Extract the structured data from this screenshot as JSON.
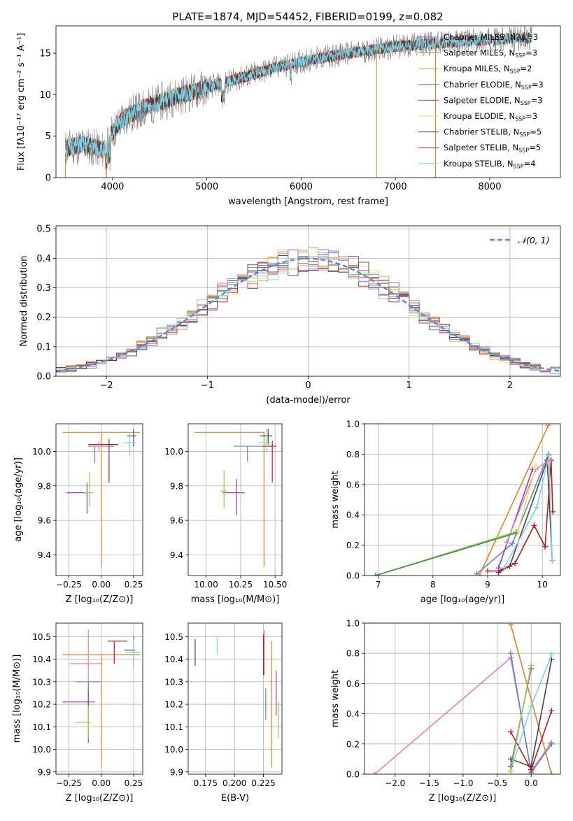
{
  "figure": {
    "title": "PLATE=1874, MJD=54452, FIBERID=0199, z=0.082"
  },
  "colors": {
    "Chabrier MILES": "#5a87cf",
    "Salpeter MILES": "#ea7f23",
    "Kroupa MILES": "#d5a232",
    "Chabrier ELODIE": "#3d8c4f",
    "Salpeter ELODIE": "#8f3fbf",
    "Kroupa ELODIE": "#e3e05a",
    "Chabrier STELIB": "#444444",
    "Salpeter STELIB": "#b21c1c",
    "Kroupa STELIB": "#7fd3df",
    "data": "#7f7f7f",
    "gaussian": "#5a87cf",
    "pink": "#e87fb4",
    "lime": "#8fd43a"
  },
  "chart_data": [
    {
      "id": "spectrum",
      "type": "line",
      "title": "PLATE=1874, MJD=54452, FIBERID=0199, z=0.082",
      "xlabel": "wavelength [Angstrom, rest frame]",
      "ylabel": "Flux [fλ10⁻¹⁷ erg cm⁻² s⁻¹ A⁻¹]",
      "xlim": [
        3400,
        8750
      ],
      "ylim": [
        0,
        18.3
      ],
      "xticks": [
        4000,
        5000,
        6000,
        7000,
        8000
      ],
      "yticks": [
        0,
        5,
        10,
        15
      ],
      "grid": false,
      "legend_position": "right",
      "series": [
        {
          "name": "Chabrier MILES, N_SSP=3",
          "label_main": "Chabrier MILES, N",
          "label_sub": "SSP",
          "label_tail": "=3"
        },
        {
          "name": "Salpeter MILES, N_SSP=3",
          "label_main": "Salpeter MILES, N",
          "label_sub": "SSP",
          "label_tail": "=3"
        },
        {
          "name": "Kroupa MILES, N_SSP=2",
          "label_main": "Kroupa MILES, N",
          "label_sub": "SSP",
          "label_tail": "=2"
        },
        {
          "name": "Chabrier ELODIE, N_SSP=3",
          "label_main": "Chabrier ELODIE, N",
          "label_sub": "SSP",
          "label_tail": "=3"
        },
        {
          "name": "Salpeter ELODIE, N_SSP=3",
          "label_main": "Salpeter ELODIE, N",
          "label_sub": "SSP",
          "label_tail": "=3"
        },
        {
          "name": "Kroupa ELODIE, N_SSP=3",
          "label_main": "Kroupa ELODIE, N",
          "label_sub": "SSP",
          "label_tail": "=3"
        },
        {
          "name": "Chabrier STELIB, N_SSP=5",
          "label_main": "Chabrier STELIB, N",
          "label_sub": "SSP",
          "label_tail": "=5"
        },
        {
          "name": "Salpeter STELIB, N_SSP=5",
          "label_main": "Salpeter STELIB, N",
          "label_sub": "SSP",
          "label_tail": "=5"
        },
        {
          "name": "Kroupa STELIB, N_SSP=4",
          "label_main": "Kroupa STELIB, N",
          "label_sub": "SSP",
          "label_tail": "=4"
        }
      ],
      "continuum": {
        "x": [
          3500,
          3700,
          3900,
          4000,
          4100,
          4300,
          4600,
          4900,
          5200,
          5500,
          5800,
          6100,
          6400,
          6700,
          7000,
          7400,
          7800,
          8300,
          8700
        ],
        "y": [
          3.5,
          4.0,
          3.3,
          5.5,
          7.0,
          8.3,
          9.5,
          10.5,
          11.5,
          12.5,
          13.5,
          14.2,
          14.8,
          15.3,
          15.8,
          16.2,
          16.5,
          16.8,
          17.0
        ]
      }
    },
    {
      "id": "residuals",
      "type": "line",
      "xlabel": "(data-model)/error",
      "ylabel": "Normed distribution",
      "xlim": [
        -2.5,
        2.5
      ],
      "ylim": [
        0,
        0.51
      ],
      "xticks": [
        -2,
        -1,
        0,
        1,
        2
      ],
      "yticks": [
        0.0,
        0.1,
        0.2,
        0.3,
        0.4,
        0.5
      ],
      "grid": true,
      "legend_position": "top-right",
      "legend_label": "𝒩(0, 1)",
      "bin_width": 0.1
    },
    {
      "id": "age-vs-z",
      "type": "scatter",
      "xlabel": "Z [log₁₀(Z/Z⊙)]",
      "ylabel": "age  [log₁₀(age/yr)]",
      "xlim": [
        -0.35,
        0.32
      ],
      "ylim": [
        9.28,
        10.16
      ],
      "xticks": [
        -0.25,
        0.0,
        0.25
      ],
      "xticklabels": [
        "−0.25",
        "0.00",
        "0.25"
      ],
      "yticks": [
        9.4,
        9.6,
        9.8,
        10.0
      ],
      "grid": true,
      "points": [
        {
          "series": "Salpeter MILES",
          "x": 0.0,
          "xerr": [
            0.3,
            0.3
          ],
          "y": 10.11,
          "yerr": [
            0.78,
            0.0
          ]
        },
        {
          "series": "Chabrier MILES",
          "x": -0.05,
          "xerr": [
            0.05,
            0.15
          ],
          "y": 10.03,
          "yerr": [
            0.1,
            0.0
          ]
        },
        {
          "series": "Chabrier STELIB",
          "x": 0.25,
          "xerr": [
            0.05,
            0.02
          ],
          "y": 10.09,
          "yerr": [
            0.06,
            0.04
          ]
        },
        {
          "series": "Salpeter STELIB",
          "x": 0.06,
          "xerr": [
            0.16,
            0.07
          ],
          "y": 10.04,
          "yerr": [
            0.22,
            0.03
          ]
        },
        {
          "series": "Kroupa STELIB",
          "x": 0.22,
          "xerr": [
            0.05,
            0.05
          ],
          "y": 10.05,
          "yerr": [
            0.08,
            0.06
          ]
        },
        {
          "series": "pink",
          "x": -0.02,
          "xerr": [
            0.06,
            0.06
          ],
          "y": 10.03,
          "yerr": [
            0.03,
            0.03
          ]
        },
        {
          "series": "Salpeter ELODIE",
          "x": -0.11,
          "xerr": [
            0.16,
            0.0
          ],
          "y": 9.76,
          "yerr": [
            0.12,
            0.06
          ]
        },
        {
          "series": "lime",
          "x": -0.09,
          "xerr": [
            0.04,
            0.03
          ],
          "y": 9.76,
          "yerr": [
            0.08,
            0.12
          ]
        }
      ]
    },
    {
      "id": "age-vs-mass",
      "type": "scatter",
      "xlabel": "mass [log₁₀(M/M⊙)]",
      "xlim": [
        9.87,
        10.55
      ],
      "ylim": [
        9.28,
        10.16
      ],
      "xticks": [
        10.0,
        10.25,
        10.5
      ],
      "xticklabels": [
        "10.00",
        "10.25",
        "10.50"
      ],
      "yticks": [
        9.4,
        9.6,
        9.8,
        10.0
      ],
      "grid": true,
      "points": [
        {
          "series": "Salpeter MILES",
          "x": 10.42,
          "xerr": [
            0.5,
            0.0
          ],
          "y": 10.11,
          "yerr": [
            0.78,
            0.0
          ]
        },
        {
          "series": "Chabrier MILES",
          "x": 10.3,
          "xerr": [
            0.1,
            0.18
          ],
          "y": 10.03,
          "yerr": [
            0.09,
            0.0
          ]
        },
        {
          "series": "Chabrier STELIB",
          "x": 10.45,
          "xerr": [
            0.06,
            0.03
          ],
          "y": 10.09,
          "yerr": [
            0.05,
            0.04
          ]
        },
        {
          "series": "Salpeter STELIB",
          "x": 10.48,
          "xerr": [
            0.07,
            0.03
          ],
          "y": 10.03,
          "yerr": [
            0.21,
            0.03
          ]
        },
        {
          "series": "Kroupa STELIB",
          "x": 10.44,
          "xerr": [
            0.06,
            0.03
          ],
          "y": 10.05,
          "yerr": [
            0.06,
            0.08
          ]
        },
        {
          "series": "Salpeter ELODIE",
          "x": 10.22,
          "xerr": [
            0.1,
            0.06
          ],
          "y": 9.76,
          "yerr": [
            0.13,
            0.08
          ]
        },
        {
          "series": "lime",
          "x": 10.13,
          "xerr": [
            0.03,
            0.02
          ],
          "y": 9.77,
          "yerr": [
            0.1,
            0.12
          ]
        }
      ]
    },
    {
      "id": "weight-vs-age",
      "type": "line",
      "xlabel": "age  [log₁₀(age/yr)]",
      "ylabel": "mass weight",
      "xlim": [
        6.75,
        10.33
      ],
      "ylim": [
        0,
        1.0
      ],
      "xticks": [
        7,
        8,
        9,
        10
      ],
      "yticks": [
        0.0,
        0.2,
        0.4,
        0.6,
        0.8,
        1.0
      ],
      "grid": true,
      "series": [
        {
          "name": "Salpeter MILES",
          "x": [
            8.85,
            10.11
          ],
          "y": [
            0.0,
            0.99
          ]
        },
        {
          "name": "Chabrier MILES",
          "x": [
            8.8,
            9.45,
            10.11
          ],
          "y": [
            0.01,
            0.21,
            0.8
          ]
        },
        {
          "name": "Chabrier STELIB",
          "x": [
            9.2,
            9.4,
            10.09,
            10.18
          ],
          "y": [
            0.02,
            0.06,
            0.76,
            0.1
          ]
        },
        {
          "name": "Salpeter STELIB",
          "x": [
            9.0,
            9.2,
            9.5,
            9.85,
            10.05,
            10.16,
            10.19
          ],
          "y": [
            0.03,
            0.03,
            0.08,
            0.33,
            0.19,
            0.76,
            0.42
          ]
        },
        {
          "name": "Kroupa STELIB",
          "x": [
            9.3,
            9.9,
            10.12,
            10.18
          ],
          "y": [
            0.05,
            0.45,
            0.79,
            0.1
          ]
        },
        {
          "name": "Salpeter ELODIE",
          "x": [
            9.2,
            9.82
          ],
          "y": [
            0.05,
            0.7
          ]
        },
        {
          "name": "pink",
          "x": [
            9.35,
            9.88,
            10.12
          ],
          "y": [
            0.22,
            0.7,
            0.76
          ]
        },
        {
          "name": "lime",
          "x": [
            6.95,
            9.53
          ],
          "y": [
            0.0,
            0.29
          ]
        },
        {
          "name": "Chabrier ELODIE",
          "x": [
            6.95,
            9.52
          ],
          "y": [
            0.0,
            0.28
          ]
        },
        {
          "name": "Kroupa ELODIE",
          "x": [
            9.55,
            9.88
          ],
          "y": [
            0.29,
            0.72
          ]
        }
      ]
    },
    {
      "id": "mass-vs-z",
      "type": "scatter",
      "xlabel": "Z [log₁₀(Z/Z⊙)]",
      "ylabel": "mass [log₁₀(M/M⊙)]",
      "xlim": [
        -0.35,
        0.32
      ],
      "ylim": [
        9.89,
        10.56
      ],
      "xticks": [
        -0.25,
        0.0,
        0.25
      ],
      "xticklabels": [
        "−0.25",
        "0.00",
        "0.25"
      ],
      "yticks": [
        9.9,
        10.0,
        10.1,
        10.2,
        10.3,
        10.4,
        10.5
      ],
      "grid": true,
      "points": [
        {
          "series": "Salpeter MILES",
          "x": 0.0,
          "xerr": [
            0.3,
            0.3
          ],
          "y": 10.42,
          "yerr": [
            0.5,
            0.0
          ]
        },
        {
          "series": "pink",
          "x": -0.1,
          "xerr": [
            0.14,
            0.11
          ],
          "y": 10.38,
          "yerr": [
            0.15,
            0.15
          ]
        },
        {
          "series": "Chabrier MILES",
          "x": -0.1,
          "xerr": [
            0.1,
            0.1
          ],
          "y": 10.3,
          "yerr": [
            0.1,
            0.0
          ]
        },
        {
          "series": "Salpeter ELODIE",
          "x": -0.1,
          "xerr": [
            0.2,
            0.05
          ],
          "y": 10.21,
          "yerr": [
            0.18,
            0.05
          ]
        },
        {
          "series": "lime",
          "x": -0.1,
          "xerr": [
            0.1,
            0.02
          ],
          "y": 10.12,
          "yerr": [
            0.07,
            0.07
          ]
        },
        {
          "series": "Chabrier STELIB",
          "x": 0.25,
          "xerr": [
            0.07,
            0.01
          ],
          "y": 10.44,
          "yerr": [
            0.07,
            0.06
          ]
        },
        {
          "series": "Kroupa STELIB",
          "x": 0.25,
          "xerr": [
            0.06,
            0.05
          ],
          "y": 10.43,
          "yerr": [
            0.06,
            0.06
          ]
        },
        {
          "series": "Salpeter STELIB",
          "x": 0.1,
          "xerr": [
            0.05,
            0.1
          ],
          "y": 10.48,
          "yerr": [
            0.1,
            0.0
          ]
        }
      ]
    },
    {
      "id": "mass-vs-ebv",
      "type": "scatter",
      "xlabel": "E(B-V)",
      "xlim": [
        0.16,
        0.241
      ],
      "ylim": [
        9.89,
        10.56
      ],
      "xticks": [
        0.175,
        0.2,
        0.225
      ],
      "xticklabels": [
        "0.175",
        "0.200",
        "0.225"
      ],
      "yticks": [
        9.9,
        10.0,
        10.1,
        10.2,
        10.3,
        10.4,
        10.5
      ],
      "grid": true,
      "points": [
        {
          "series": "Chabrier STELIB",
          "x": 0.166,
          "y": 10.43,
          "yerr": [
            0.06,
            0.06
          ]
        },
        {
          "series": "Kroupa STELIB",
          "x": 0.185,
          "y": 10.46,
          "yerr": [
            0.04,
            0.04
          ]
        },
        {
          "series": "Salpeter STELIB",
          "x": 0.225,
          "y": 10.42,
          "yerr": [
            0.09,
            0.09
          ]
        },
        {
          "series": "pink",
          "x": 0.226,
          "y": 10.43,
          "yerr": [
            0.1,
            0.1
          ]
        },
        {
          "series": "Chabrier MILES",
          "x": 0.227,
          "y": 10.2,
          "yerr": [
            0.07,
            0.07
          ]
        },
        {
          "series": "Salpeter MILES",
          "x": 0.232,
          "y": 10.2,
          "yerr": [
            0.28,
            0.28
          ]
        },
        {
          "series": "Salpeter ELODIE",
          "x": 0.236,
          "y": 10.25,
          "yerr": [
            0.1,
            0.1
          ]
        },
        {
          "series": "lime",
          "x": 0.238,
          "y": 10.13,
          "yerr": [
            0.08,
            0.08
          ]
        }
      ]
    },
    {
      "id": "weight-vs-z",
      "type": "line",
      "xlabel": "Z [log₁₀(Z/Z⊙)]",
      "ylabel": "mass weight",
      "xlim": [
        -2.45,
        0.43
      ],
      "ylim": [
        0,
        1.0
      ],
      "xticks": [
        -2.0,
        -1.5,
        -1.0,
        -0.5,
        0.0
      ],
      "xticklabels": [
        "−2.0",
        "−1.5",
        "−1.0",
        "−0.5",
        "0.0"
      ],
      "yticks": [
        0.0,
        0.2,
        0.4,
        0.6,
        0.8,
        1.0
      ],
      "grid": true,
      "series": [
        {
          "name": "Salpeter MILES",
          "x": [
            -0.3,
            0.3
          ],
          "y": [
            0.99,
            0.0
          ]
        },
        {
          "name": "pink",
          "x": [
            -2.3,
            -0.3,
            0.0,
            0.3
          ],
          "y": [
            0.0,
            0.77,
            0.02,
            0.21
          ]
        },
        {
          "name": "Chabrier MILES",
          "x": [
            -0.3,
            0.0,
            0.3
          ],
          "y": [
            0.8,
            0.01,
            0.2
          ]
        },
        {
          "name": "Chabrier STELIB",
          "x": [
            -0.3,
            0.0,
            0.3
          ],
          "y": [
            0.1,
            0.05,
            0.76
          ]
        },
        {
          "name": "Salpeter STELIB",
          "x": [
            -0.3,
            0.0,
            0.3
          ],
          "y": [
            0.28,
            0.03,
            0.42
          ]
        },
        {
          "name": "Kroupa STELIB",
          "x": [
            -0.3,
            0.0,
            0.3
          ],
          "y": [
            0.02,
            0.45,
            0.79
          ]
        },
        {
          "name": "Salpeter ELODIE",
          "x": [
            -0.3,
            0.0
          ],
          "y": [
            0.05,
            0.7
          ]
        },
        {
          "name": "lime",
          "x": [
            -0.3,
            0.0
          ],
          "y": [
            0.02,
            0.72
          ]
        }
      ]
    }
  ]
}
